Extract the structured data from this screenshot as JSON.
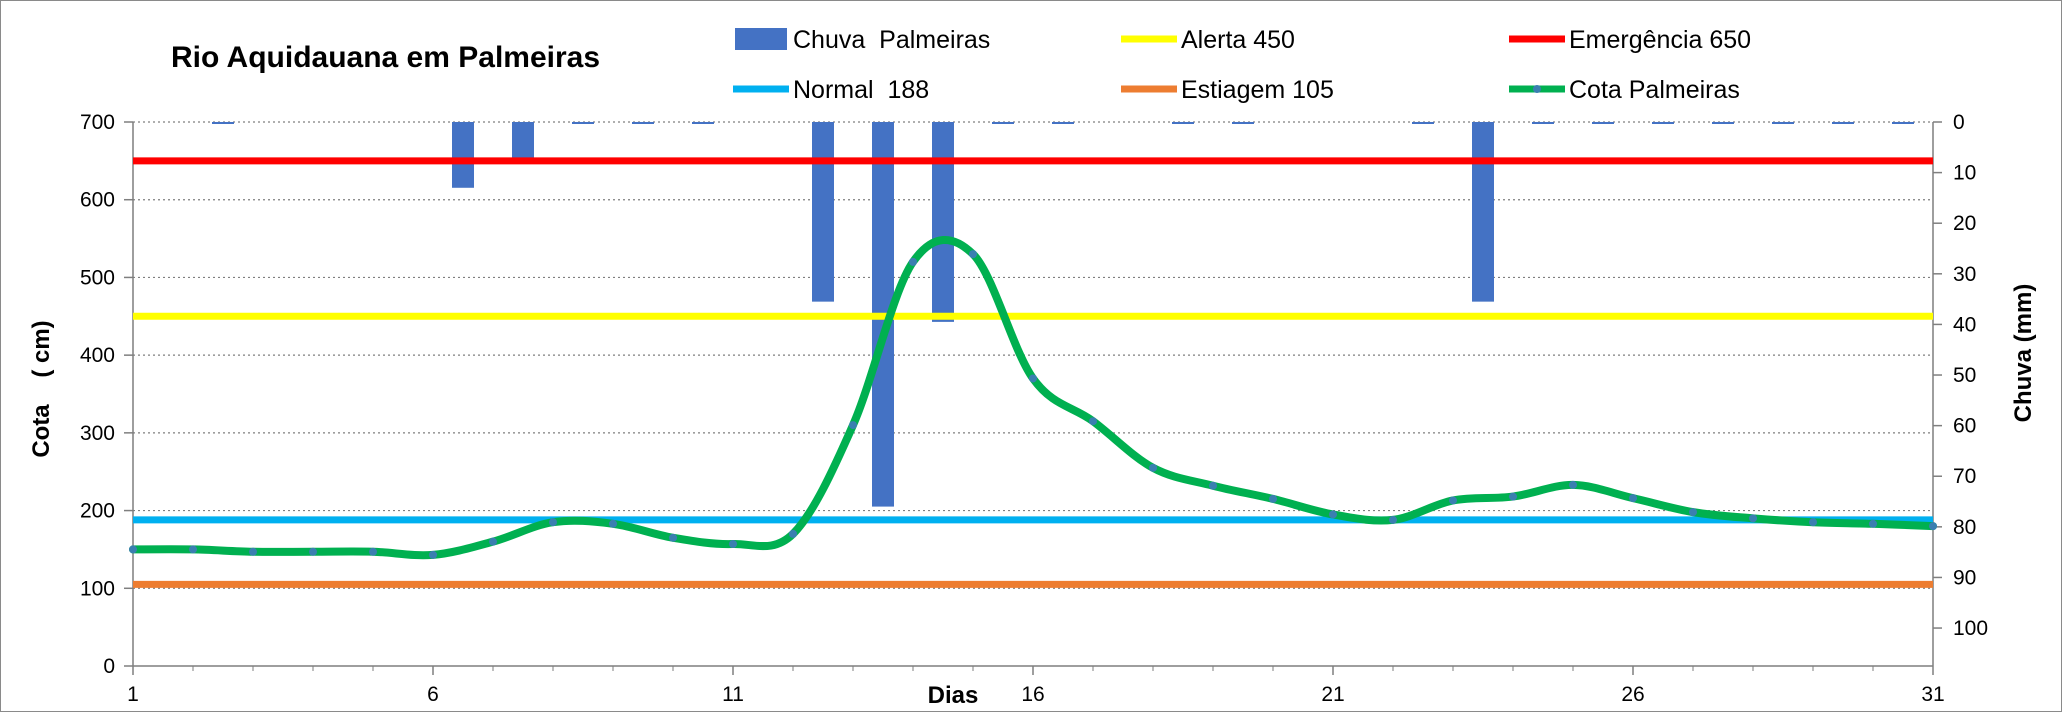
{
  "chart_data": {
    "type": "bar+line",
    "title": "Rio Aquidauana em Palmeiras",
    "xlabel": "Dias",
    "ylabel_left": "Cota    ( cm)",
    "ylabel_right": "Chuva (mm)",
    "x_ticks": [
      "1",
      "6",
      "11",
      "16",
      "21",
      "26",
      "31"
    ],
    "y_left_ticks": [
      "0",
      "100",
      "200",
      "300",
      "400",
      "500",
      "600",
      "700"
    ],
    "y_right_ticks": [
      "0",
      "10",
      "20",
      "30",
      "40",
      "50",
      "60",
      "70",
      "80",
      "90",
      "100"
    ],
    "xlim": [
      1,
      31
    ],
    "ylim_left": [
      0,
      700
    ],
    "ylim_right": [
      0,
      107.5
    ],
    "y_right_inverted": true,
    "grid": "horizontal-dotted",
    "legend_placement": "top",
    "x": [
      1,
      2,
      3,
      4,
      5,
      6,
      7,
      8,
      9,
      10,
      11,
      12,
      13,
      14,
      15,
      16,
      17,
      18,
      19,
      20,
      21,
      22,
      23,
      24,
      25,
      26,
      27,
      28,
      29,
      30,
      31
    ],
    "series": [
      {
        "name": "Chuva  Palmeiras",
        "kind": "bar",
        "axis": "right",
        "color": "#4472C4",
        "values": [
          0,
          0,
          0.2,
          0,
          0,
          0,
          13,
          7.5,
          0.2,
          0.2,
          0.2,
          0,
          35.5,
          76,
          39.5,
          0.2,
          0.2,
          0,
          0.2,
          0.2,
          0,
          0,
          0.2,
          35.5,
          0.2,
          0.2,
          0.2,
          0.2,
          0.2,
          0.2,
          0.2
        ]
      },
      {
        "name": "Cota Palmeiras",
        "kind": "line",
        "axis": "left",
        "color": "#00B050",
        "values": [
          150,
          150,
          147,
          147,
          147,
          143,
          160,
          185,
          183,
          165,
          157,
          170,
          310,
          520,
          530,
          370,
          315,
          255,
          232,
          215,
          195,
          188,
          213,
          218,
          233,
          216,
          198,
          190,
          185,
          183,
          180
        ]
      },
      {
        "name": "Emergência 650",
        "kind": "reference",
        "axis": "left",
        "color": "#FF0000",
        "value": 650
      },
      {
        "name": "Alerta 450",
        "kind": "reference",
        "axis": "left",
        "color": "#FFFF00",
        "value": 450
      },
      {
        "name": "Normal  188",
        "kind": "reference",
        "axis": "left",
        "color": "#00B0F0",
        "value": 188
      },
      {
        "name": "Estiagem 105",
        "kind": "reference",
        "axis": "left",
        "color": "#ED7D31",
        "value": 105
      }
    ]
  }
}
